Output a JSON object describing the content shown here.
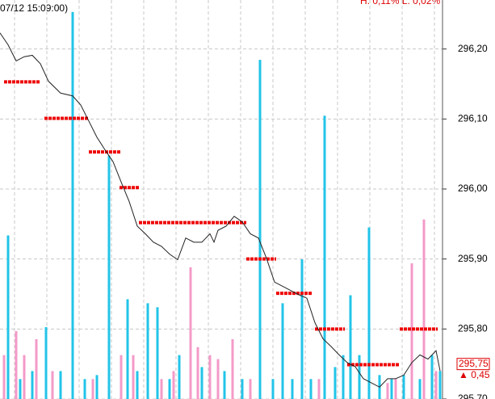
{
  "chart_data": {
    "type": "line",
    "title": "07/12 15:09:00)",
    "subtitle": "H: 0,11%  L: 0,02%",
    "xlim": [
      0,
      548
    ],
    "xticks": [
      18,
      58,
      98,
      138,
      178,
      218,
      258,
      298,
      338,
      378,
      418,
      458,
      498,
      538
    ],
    "ylim": [
      295.7,
      296.27
    ],
    "yticks": [
      {
        "value": 295.7,
        "label": "295,70"
      },
      {
        "value": 295.8,
        "label": "295,80"
      },
      {
        "value": 295.9,
        "label": "295,90"
      },
      {
        "value": 296.0,
        "label": "296,00"
      },
      {
        "value": 296.1,
        "label": "296,10"
      },
      {
        "value": 296.2,
        "label": "296,20"
      }
    ],
    "grid": true,
    "last_price": {
      "value": 295.75,
      "label": "295,75"
    },
    "change": "▲ 0,45",
    "series": [
      {
        "color": "#222222",
        "x": [
          0,
          10,
          20,
          30,
          40,
          50,
          60,
          75,
          90,
          100,
          110,
          120,
          130,
          140,
          150,
          160,
          170,
          180,
          190,
          200,
          210,
          220,
          230,
          240,
          250,
          260,
          265,
          270,
          280,
          290,
          300,
          310,
          320,
          330,
          340,
          350,
          360,
          370,
          380,
          390,
          400,
          410,
          420,
          430,
          440,
          450,
          460,
          470,
          480,
          490,
          500,
          510,
          520,
          530,
          540,
          545
        ],
        "values": [
          296.223,
          296.206,
          296.183,
          296.189,
          296.191,
          296.179,
          296.154,
          296.137,
          296.133,
          296.12,
          296.097,
          296.074,
          296.056,
          296.039,
          296.01,
          295.982,
          295.947,
          295.936,
          295.924,
          295.918,
          295.907,
          295.899,
          295.93,
          295.924,
          295.924,
          295.936,
          295.924,
          295.941,
          295.947,
          295.961,
          295.953,
          295.936,
          295.93,
          295.901,
          295.867,
          295.861,
          295.855,
          295.849,
          295.844,
          295.809,
          295.786,
          295.775,
          295.763,
          295.752,
          295.746,
          295.729,
          295.723,
          295.717,
          295.729,
          295.729,
          295.734,
          295.752,
          295.763,
          295.757,
          295.769,
          295.74
        ]
      }
    ],
    "levels": {
      "color": "#ee0000",
      "x_start": [
        5,
        55,
        110,
        148,
        172,
        305,
        342,
        390,
        430,
        495
      ],
      "x_end": [
        50,
        110,
        150,
        172,
        305,
        342,
        387,
        427,
        495,
        542
      ],
      "values": [
        296.153,
        296.101,
        296.053,
        296.002,
        295.952,
        295.9,
        295.851,
        295.8,
        295.749,
        295.8
      ]
    },
    "volume_lim": [
      0,
      100
    ],
    "volume": [
      {
        "color": "#22c4e8",
        "x": [
          10,
          25,
          40,
          57,
          75,
          90,
          105,
          120,
          135,
          158,
          170,
          183,
          195,
          210,
          222,
          250,
          278,
          300,
          322,
          338,
          350,
          362,
          374,
          385,
          402,
          415,
          425,
          434,
          445,
          457,
          470,
          485,
          500,
          520,
          535,
          545
        ],
        "values": [
          41,
          5,
          7,
          18,
          7,
          97,
          5,
          6,
          61,
          25,
          7,
          24,
          23,
          5,
          11,
          8,
          7,
          5,
          85,
          5,
          24,
          5,
          35,
          5,
          71,
          8,
          11,
          26,
          11,
          43,
          6,
          5,
          6,
          5,
          11,
          7
        ]
      },
      {
        "color": "#f49ac8",
        "x": [
          5,
          20,
          30,
          45,
          65,
          115,
          150,
          165,
          200,
          215,
          236,
          245,
          260,
          270,
          288,
          310,
          395,
          480,
          490,
          510,
          525,
          540
        ],
        "values": [
          11,
          17,
          11,
          15,
          7,
          5,
          11,
          11,
          5,
          7,
          33,
          13,
          11,
          10,
          15,
          5,
          5,
          4,
          5,
          34,
          45,
          7
        ]
      }
    ]
  }
}
